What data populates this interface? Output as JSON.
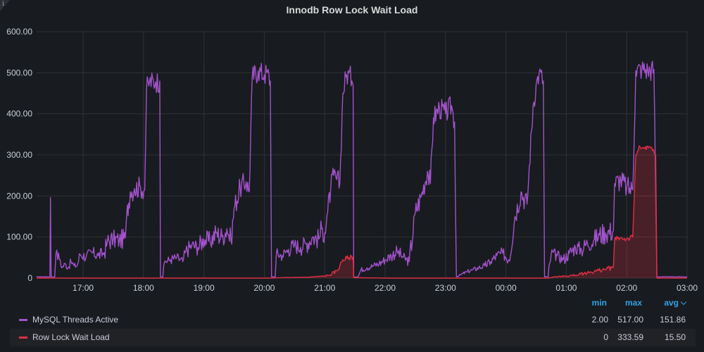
{
  "panel": {
    "title": "Innodb Row Lock Wait Load",
    "info_icon": "info-icon",
    "info_glyph": "i"
  },
  "legend": {
    "headers": {
      "min": "min",
      "max": "max",
      "avg": "avg"
    },
    "sort_icon": "chevron-down-icon",
    "rows": [
      {
        "name": "MySQL Threads Active",
        "color": "#a352cc",
        "min": "2.00",
        "max": "517.00",
        "avg": "151.86"
      },
      {
        "name": "Row Lock Wait Load",
        "color": "#e02f44",
        "min": "0",
        "max": "333.59",
        "avg": "15.50"
      }
    ]
  },
  "chart_data": {
    "type": "line",
    "title": "Innodb Row Lock Wait Load",
    "x_unit": "hours (16:00 = 16, 03:00 next day = 27)",
    "xlim": [
      16.23,
      27.0
    ],
    "ylim": [
      0,
      600
    ],
    "y_ticks": [
      "0",
      "100.00",
      "200.00",
      "300.00",
      "400.00",
      "500.00",
      "600.00"
    ],
    "x_ticks": [
      "17:00",
      "18:00",
      "19:00",
      "20:00",
      "21:00",
      "22:00",
      "23:00",
      "00:00",
      "01:00",
      "02:00",
      "03:00"
    ],
    "x_tick_values": [
      17,
      18,
      19,
      20,
      21,
      22,
      23,
      24,
      25,
      26,
      27
    ],
    "grid": true,
    "series": [
      {
        "name": "MySQL Threads Active",
        "color": "#a352cc",
        "fill": false,
        "points": [
          [
            16.23,
            3
          ],
          [
            16.45,
            3
          ],
          [
            16.46,
            196
          ],
          [
            16.47,
            3
          ],
          [
            16.53,
            3
          ],
          [
            16.55,
            60
          ],
          [
            16.62,
            45
          ],
          [
            16.65,
            25
          ],
          [
            16.7,
            35
          ],
          [
            16.75,
            25
          ],
          [
            16.8,
            40
          ],
          [
            16.85,
            30
          ],
          [
            16.9,
            30
          ],
          [
            16.95,
            58
          ],
          [
            17.05,
            52
          ],
          [
            17.15,
            62
          ],
          [
            17.25,
            55
          ],
          [
            17.35,
            62
          ],
          [
            17.4,
            88
          ],
          [
            17.5,
            95
          ],
          [
            17.6,
            92
          ],
          [
            17.7,
            98
          ],
          [
            17.72,
            150
          ],
          [
            17.78,
            210
          ],
          [
            17.85,
            218
          ],
          [
            17.95,
            222
          ],
          [
            18.02,
            215
          ],
          [
            18.05,
            460
          ],
          [
            18.1,
            478
          ],
          [
            18.2,
            478
          ],
          [
            18.27,
            480
          ],
          [
            18.28,
            3
          ],
          [
            18.32,
            3
          ],
          [
            18.35,
            40
          ],
          [
            18.45,
            45
          ],
          [
            18.55,
            50
          ],
          [
            18.65,
            40
          ],
          [
            18.7,
            65
          ],
          [
            18.8,
            80
          ],
          [
            18.9,
            75
          ],
          [
            19.0,
            95
          ],
          [
            19.1,
            90
          ],
          [
            19.2,
            110
          ],
          [
            19.3,
            100
          ],
          [
            19.38,
            120
          ],
          [
            19.45,
            90
          ],
          [
            19.5,
            170
          ],
          [
            19.6,
            220
          ],
          [
            19.7,
            235
          ],
          [
            19.75,
            210
          ],
          [
            19.8,
            490
          ],
          [
            19.9,
            505
          ],
          [
            20.0,
            495
          ],
          [
            20.05,
            500
          ],
          [
            20.1,
            480
          ],
          [
            20.12,
            3
          ],
          [
            20.18,
            3
          ],
          [
            20.2,
            60
          ],
          [
            20.3,
            55
          ],
          [
            20.4,
            70
          ],
          [
            20.5,
            80
          ],
          [
            20.6,
            75
          ],
          [
            20.7,
            85
          ],
          [
            20.8,
            100
          ],
          [
            20.9,
            95
          ],
          [
            20.95,
            120
          ],
          [
            21.0,
            110
          ],
          [
            21.05,
            160
          ],
          [
            21.1,
            220
          ],
          [
            21.15,
            250
          ],
          [
            21.2,
            240
          ],
          [
            21.25,
            230
          ],
          [
            21.3,
            450
          ],
          [
            21.35,
            490
          ],
          [
            21.4,
            500
          ],
          [
            21.45,
            480
          ],
          [
            21.47,
            470
          ],
          [
            21.48,
            3
          ],
          [
            21.55,
            3
          ],
          [
            21.6,
            20
          ],
          [
            21.7,
            25
          ],
          [
            21.8,
            30
          ],
          [
            21.9,
            35
          ],
          [
            22.0,
            45
          ],
          [
            22.1,
            55
          ],
          [
            22.2,
            65
          ],
          [
            22.3,
            50
          ],
          [
            22.4,
            40
          ],
          [
            22.5,
            160
          ],
          [
            22.6,
            200
          ],
          [
            22.7,
            260
          ],
          [
            22.75,
            230
          ],
          [
            22.8,
            390
          ],
          [
            22.9,
            415
          ],
          [
            23.0,
            400
          ],
          [
            23.1,
            420
          ],
          [
            23.15,
            380
          ],
          [
            23.18,
            3
          ],
          [
            23.25,
            8
          ],
          [
            23.35,
            15
          ],
          [
            23.45,
            20
          ],
          [
            23.55,
            25
          ],
          [
            23.65,
            30
          ],
          [
            23.75,
            40
          ],
          [
            23.85,
            55
          ],
          [
            23.95,
            60
          ],
          [
            24.05,
            45
          ],
          [
            24.15,
            150
          ],
          [
            24.25,
            210
          ],
          [
            24.35,
            180
          ],
          [
            24.45,
            420
          ],
          [
            24.5,
            470
          ],
          [
            24.55,
            500
          ],
          [
            24.62,
            480
          ],
          [
            24.64,
            3
          ],
          [
            24.7,
            3
          ],
          [
            24.75,
            60
          ],
          [
            24.85,
            55
          ],
          [
            24.95,
            45
          ],
          [
            25.05,
            60
          ],
          [
            25.15,
            75
          ],
          [
            25.25,
            70
          ],
          [
            25.35,
            85
          ],
          [
            25.45,
            90
          ],
          [
            25.55,
            105
          ],
          [
            25.65,
            110
          ],
          [
            25.78,
            115
          ],
          [
            25.8,
            230
          ],
          [
            25.9,
            240
          ],
          [
            26.0,
            220
          ],
          [
            26.1,
            215
          ],
          [
            26.15,
            505
          ],
          [
            26.25,
            510
          ],
          [
            26.35,
            505
          ],
          [
            26.45,
            508
          ],
          [
            26.5,
            3
          ],
          [
            26.6,
            3
          ],
          [
            27.0,
            3
          ]
        ]
      },
      {
        "name": "Row Lock Wait Load",
        "color": "#e02f44",
        "fill": true,
        "points": [
          [
            16.23,
            0
          ],
          [
            20.1,
            0
          ],
          [
            20.3,
            1
          ],
          [
            20.7,
            2
          ],
          [
            21.0,
            5
          ],
          [
            21.1,
            8
          ],
          [
            21.2,
            18
          ],
          [
            21.25,
            30
          ],
          [
            21.3,
            45
          ],
          [
            21.4,
            50
          ],
          [
            21.47,
            52
          ],
          [
            21.48,
            1
          ],
          [
            22.0,
            0
          ],
          [
            24.7,
            0
          ],
          [
            24.8,
            3
          ],
          [
            25.0,
            5
          ],
          [
            25.2,
            8
          ],
          [
            25.4,
            15
          ],
          [
            25.6,
            20
          ],
          [
            25.75,
            25
          ],
          [
            25.78,
            26
          ],
          [
            25.8,
            95
          ],
          [
            25.9,
            98
          ],
          [
            26.0,
            95
          ],
          [
            26.1,
            100
          ],
          [
            26.15,
            300
          ],
          [
            26.22,
            320
          ],
          [
            26.3,
            315
          ],
          [
            26.4,
            318
          ],
          [
            26.48,
            300
          ],
          [
            26.5,
            0
          ],
          [
            27.0,
            0
          ]
        ]
      }
    ]
  }
}
